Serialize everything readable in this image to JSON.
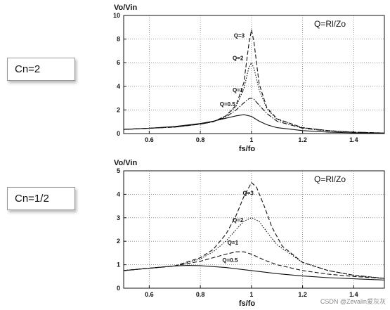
{
  "labels": {
    "top_case": "Cn=2",
    "bottom_case": "Cn=1/2"
  },
  "watermark": "CSDN @Zevalin爱灰灰",
  "chart_data": [
    {
      "type": "line",
      "ylabel": "Vo/Vin",
      "xlabel": "fs/fo",
      "annotation": "Q=Rl/Zo",
      "xlim": [
        0.5,
        1.52
      ],
      "ylim": [
        0,
        10
      ],
      "x_ticks": [
        0.6,
        0.8,
        1,
        1.2,
        1.4
      ],
      "x_tick_labels": [
        "0.6",
        "0.8",
        "1",
        "1.2",
        "1.4"
      ],
      "y_ticks": [
        0,
        2,
        4,
        6,
        8,
        10
      ],
      "y_tick_labels": [
        "0",
        "2",
        "4",
        "6",
        "8",
        "10"
      ],
      "grid": true,
      "series": [
        {
          "name": "Q=0.5",
          "line": "solid",
          "label_at": [
            0.92,
            2.2
          ],
          "x": [
            0.5,
            0.6,
            0.7,
            0.8,
            0.85,
            0.9,
            0.94,
            0.97,
            1.0,
            1.03,
            1.06,
            1.1,
            1.2,
            1.3,
            1.4,
            1.52
          ],
          "y": [
            0.35,
            0.45,
            0.6,
            0.85,
            1.05,
            1.3,
            1.5,
            1.6,
            1.45,
            1.05,
            0.75,
            0.5,
            0.25,
            0.12,
            0.06,
            0.02
          ]
        },
        {
          "name": "Q=1",
          "line": "dashdot",
          "label_at": [
            0.97,
            3.4
          ],
          "x": [
            0.5,
            0.7,
            0.8,
            0.85,
            0.9,
            0.94,
            0.97,
            0.99,
            1.0,
            1.01,
            1.03,
            1.06,
            1.1,
            1.2,
            1.3,
            1.4,
            1.52
          ],
          "y": [
            0.35,
            0.55,
            0.8,
            1.0,
            1.4,
            2.0,
            2.6,
            2.95,
            3.0,
            2.9,
            2.4,
            1.7,
            1.05,
            0.45,
            0.22,
            0.12,
            0.05
          ]
        },
        {
          "name": "Q=2",
          "line": "dotted",
          "label_at": [
            0.97,
            6.1
          ],
          "x": [
            0.5,
            0.7,
            0.8,
            0.85,
            0.9,
            0.94,
            0.97,
            0.99,
            1.0,
            1.01,
            1.03,
            1.06,
            1.1,
            1.2,
            1.3,
            1.4,
            1.52
          ],
          "y": [
            0.35,
            0.55,
            0.8,
            1.0,
            1.5,
            2.3,
            3.8,
            5.6,
            6.0,
            5.5,
            3.7,
            2.1,
            1.2,
            0.5,
            0.25,
            0.12,
            0.05
          ]
        },
        {
          "name": "Q=3",
          "line": "dashed",
          "label_at": [
            0.975,
            8.0
          ],
          "x": [
            0.5,
            0.7,
            0.8,
            0.85,
            0.9,
            0.94,
            0.97,
            0.99,
            1.0,
            1.01,
            1.03,
            1.06,
            1.1,
            1.2,
            1.3,
            1.4,
            1.52
          ],
          "y": [
            0.35,
            0.55,
            0.8,
            1.0,
            1.5,
            2.4,
            4.3,
            7.6,
            8.8,
            7.7,
            4.2,
            2.2,
            1.25,
            0.5,
            0.25,
            0.12,
            0.05
          ]
        }
      ]
    },
    {
      "type": "line",
      "ylabel": "Vo/Vin",
      "xlabel": "fs/fo",
      "annotation": "Q=Rl/Zo",
      "xlim": [
        0.5,
        1.52
      ],
      "ylim": [
        0,
        5
      ],
      "x_ticks": [
        0.6,
        0.8,
        1,
        1.2,
        1.4
      ],
      "x_tick_labels": [
        "0.6",
        "0.8",
        "1",
        "1.2",
        "1.4"
      ],
      "y_ticks": [
        0,
        1,
        2,
        3,
        4,
        5
      ],
      "y_tick_labels": [
        "0",
        "1",
        "2",
        "3",
        "4",
        "5"
      ],
      "grid": true,
      "series": [
        {
          "name": "Q=0.5",
          "line": "solid",
          "label_at": [
            0.93,
            1.05
          ],
          "x": [
            0.5,
            0.6,
            0.7,
            0.75,
            0.8,
            0.9,
            1.0,
            1.1,
            1.2,
            1.3,
            1.4,
            1.52
          ],
          "y": [
            0.75,
            0.85,
            0.95,
            0.97,
            0.96,
            0.88,
            0.75,
            0.62,
            0.52,
            0.45,
            0.4,
            0.35
          ]
        },
        {
          "name": "Q=1",
          "line": "dashed",
          "label_at": [
            0.95,
            1.8
          ],
          "x": [
            0.5,
            0.6,
            0.7,
            0.8,
            0.85,
            0.9,
            0.94,
            0.97,
            1.0,
            1.05,
            1.1,
            1.2,
            1.3,
            1.4,
            1.52
          ],
          "y": [
            0.75,
            0.85,
            0.95,
            1.15,
            1.3,
            1.45,
            1.55,
            1.55,
            1.45,
            1.2,
            1.0,
            0.75,
            0.6,
            0.5,
            0.42
          ]
        },
        {
          "name": "Q=2",
          "line": "dotted",
          "label_at": [
            0.97,
            2.75
          ],
          "x": [
            0.5,
            0.6,
            0.7,
            0.8,
            0.85,
            0.9,
            0.94,
            0.97,
            1.0,
            1.03,
            1.06,
            1.1,
            1.2,
            1.3,
            1.4,
            1.52
          ],
          "y": [
            0.75,
            0.85,
            0.95,
            1.25,
            1.55,
            2.0,
            2.5,
            2.85,
            3.0,
            2.85,
            2.4,
            1.85,
            1.1,
            0.75,
            0.55,
            0.42
          ]
        },
        {
          "name": "Q=3",
          "line": "dashed",
          "label_at": [
            1.01,
            3.9
          ],
          "x": [
            0.5,
            0.6,
            0.7,
            0.8,
            0.85,
            0.9,
            0.94,
            0.97,
            1.0,
            1.02,
            1.05,
            1.08,
            1.12,
            1.2,
            1.3,
            1.4,
            1.52
          ],
          "y": [
            0.75,
            0.85,
            0.95,
            1.3,
            1.65,
            2.3,
            3.1,
            3.9,
            4.5,
            4.3,
            3.5,
            2.6,
            1.8,
            1.1,
            0.75,
            0.55,
            0.42
          ]
        }
      ]
    }
  ]
}
